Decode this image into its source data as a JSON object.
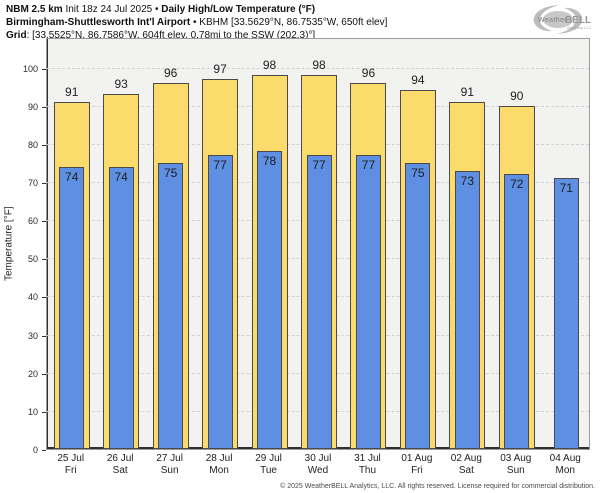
{
  "header": {
    "model": "NBM 2.5 km",
    "init": " Init 18z 24 Jul 2025 • ",
    "product": "Daily High/Low Temperature (°F)",
    "station": "Birmingham-Shuttlesworth Int'l Airport",
    "station_rest": " • KBHM [33.5629°N, 86.7535°W, 650ft elev]",
    "grid_label": "Grid",
    "grid_info": ": [33.5525°N, 86.7586°W, 604ft elev, 0.78mi to the SSW (202.3)°]"
  },
  "logo": {
    "brand_weather": "Weather",
    "brand_bell": "BELL",
    "brand_sub": "Analytics LLC"
  },
  "chart_data": {
    "type": "bar",
    "title": "Daily High/Low Temperature (°F)",
    "ylabel": "Temperature [°F]",
    "ylim": [
      0,
      108
    ],
    "yticks": [
      0,
      10,
      20,
      30,
      40,
      50,
      60,
      70,
      80,
      90,
      100
    ],
    "grid": true,
    "legend_position": "none",
    "categories": [
      {
        "date": "25 Jul",
        "day": "Fri"
      },
      {
        "date": "26 Jul",
        "day": "Sat"
      },
      {
        "date": "27 Jul",
        "day": "Sun"
      },
      {
        "date": "28 Jul",
        "day": "Mon"
      },
      {
        "date": "29 Jul",
        "day": "Tue"
      },
      {
        "date": "30 Jul",
        "day": "Wed"
      },
      {
        "date": "31 Jul",
        "day": "Thu"
      },
      {
        "date": "01 Aug",
        "day": "Fri"
      },
      {
        "date": "02 Aug",
        "day": "Sat"
      },
      {
        "date": "03 Aug",
        "day": "Sun"
      },
      {
        "date": "04 Aug",
        "day": "Mon"
      }
    ],
    "series": [
      {
        "name": "High",
        "color": "#fbdb6b",
        "values": [
          91,
          93,
          96,
          97,
          98,
          98,
          96,
          94,
          91,
          90,
          null
        ]
      },
      {
        "name": "Low",
        "color": "#5e8fe2",
        "values": [
          74,
          74,
          75,
          77,
          78,
          77,
          77,
          75,
          73,
          72,
          71
        ]
      }
    ]
  },
  "colors": {
    "high_fill": "#fbdb6b",
    "low_fill": "#5e8fe2",
    "bar_border": "#4a4a4a",
    "plot_bg": "#f2f2f1",
    "gridline": "#d2d2d2",
    "spine": "#2f2f2f",
    "logo_gray": "#b9b9b9"
  },
  "footer": {
    "copyright": "© 2025 WeatherBELL Analytics, LLC. All rights reserved. License required for commercial distribution."
  }
}
